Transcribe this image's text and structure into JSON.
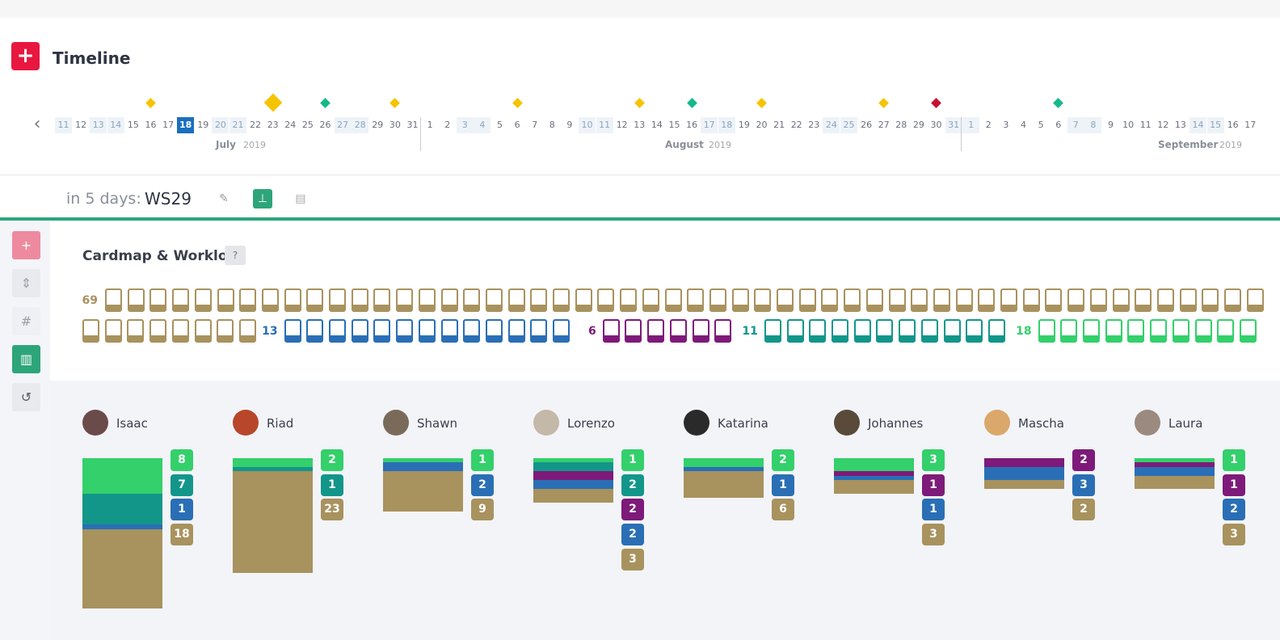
{
  "app": {
    "title": "Timeline",
    "logo_icon": "plus-icon"
  },
  "colors": {
    "brand": "#e8173f",
    "accent": "#2da57a",
    "today": "#1a6fc0"
  },
  "timeline": {
    "today": "18 July 2019",
    "months": [
      {
        "name": "July",
        "year": "2019"
      },
      {
        "name": "August",
        "year": "2019"
      },
      {
        "name": "September",
        "year": "2019"
      }
    ],
    "days": [
      {
        "d": "11",
        "w": true
      },
      {
        "d": "12",
        "w": false
      },
      {
        "d": "13",
        "w": true
      },
      {
        "d": "14",
        "w": true
      },
      {
        "d": "15",
        "w": false
      },
      {
        "d": "16",
        "w": false
      },
      {
        "d": "17",
        "w": false
      },
      {
        "d": "18",
        "w": false,
        "today": true
      },
      {
        "d": "19",
        "w": false
      },
      {
        "d": "20",
        "w": true
      },
      {
        "d": "21",
        "w": true
      },
      {
        "d": "22",
        "w": false
      },
      {
        "d": "23",
        "w": false
      },
      {
        "d": "24",
        "w": false
      },
      {
        "d": "25",
        "w": false
      },
      {
        "d": "26",
        "w": false
      },
      {
        "d": "27",
        "w": true
      },
      {
        "d": "28",
        "w": true
      },
      {
        "d": "29",
        "w": false
      },
      {
        "d": "30",
        "w": false
      },
      {
        "d": "31",
        "w": false
      },
      {
        "d": "1",
        "w": false
      },
      {
        "d": "2",
        "w": false
      },
      {
        "d": "3",
        "w": true
      },
      {
        "d": "4",
        "w": true
      },
      {
        "d": "5",
        "w": false
      },
      {
        "d": "6",
        "w": false
      },
      {
        "d": "7",
        "w": false
      },
      {
        "d": "8",
        "w": false
      },
      {
        "d": "9",
        "w": false
      },
      {
        "d": "10",
        "w": true
      },
      {
        "d": "11",
        "w": true
      },
      {
        "d": "12",
        "w": false
      },
      {
        "d": "13",
        "w": false
      },
      {
        "d": "14",
        "w": false
      },
      {
        "d": "15",
        "w": false
      },
      {
        "d": "16",
        "w": false
      },
      {
        "d": "17",
        "w": true
      },
      {
        "d": "18",
        "w": true
      },
      {
        "d": "19",
        "w": false
      },
      {
        "d": "20",
        "w": false
      },
      {
        "d": "21",
        "w": false
      },
      {
        "d": "22",
        "w": false
      },
      {
        "d": "23",
        "w": false
      },
      {
        "d": "24",
        "w": true
      },
      {
        "d": "25",
        "w": true
      },
      {
        "d": "26",
        "w": false
      },
      {
        "d": "27",
        "w": false
      },
      {
        "d": "28",
        "w": false
      },
      {
        "d": "29",
        "w": false
      },
      {
        "d": "30",
        "w": false
      },
      {
        "d": "31",
        "w": true
      },
      {
        "d": "1",
        "w": true
      },
      {
        "d": "2",
        "w": false
      },
      {
        "d": "3",
        "w": false
      },
      {
        "d": "4",
        "w": false
      },
      {
        "d": "5",
        "w": false
      },
      {
        "d": "6",
        "w": false
      },
      {
        "d": "7",
        "w": true
      },
      {
        "d": "8",
        "w": true
      },
      {
        "d": "9",
        "w": false
      },
      {
        "d": "10",
        "w": false
      },
      {
        "d": "11",
        "w": false
      },
      {
        "d": "12",
        "w": false
      },
      {
        "d": "13",
        "w": false
      },
      {
        "d": "14",
        "w": true
      },
      {
        "d": "15",
        "w": true
      },
      {
        "d": "16",
        "w": false
      },
      {
        "d": "17",
        "w": false
      }
    ],
    "events": [
      {
        "day_index": 5,
        "color": "#f5c400",
        "big": false
      },
      {
        "day_index": 12,
        "color": "#f5c400",
        "big": true
      },
      {
        "day_index": 15,
        "color": "#14b88a",
        "big": false
      },
      {
        "day_index": 19,
        "color": "#f5c400",
        "big": false
      },
      {
        "day_index": 26,
        "color": "#f5c400",
        "big": false
      },
      {
        "day_index": 33,
        "color": "#f5c400",
        "big": false
      },
      {
        "day_index": 36,
        "color": "#14b88a",
        "big": false
      },
      {
        "day_index": 40,
        "color": "#f5c400",
        "big": false
      },
      {
        "day_index": 47,
        "color": "#f5c400",
        "big": false
      },
      {
        "day_index": 50,
        "color": "#c8102e",
        "big": false
      },
      {
        "day_index": 57,
        "color": "#14b88a",
        "big": false
      }
    ]
  },
  "event": {
    "prefix": "in 5 days:",
    "name": "WS29"
  },
  "sidebar": {
    "buttons": [
      {
        "name": "add-button",
        "icon": "+",
        "bg": "#ee8aa0",
        "fg": "#ffffff"
      },
      {
        "name": "sort-button",
        "icon": "⇕",
        "bg": "#e8eaee",
        "fg": "#9aa0aa"
      },
      {
        "name": "hash-button",
        "icon": "#",
        "bg": "#eef0f3",
        "fg": "#9aa0aa"
      },
      {
        "name": "chart-button",
        "icon": "▥",
        "bg": "#2da57a",
        "fg": "#ffffff"
      },
      {
        "name": "history-button",
        "icon": "↺",
        "bg": "#e8eaee",
        "fg": "#555b66"
      }
    ]
  },
  "cardmap": {
    "title": "Cardmap & Workload",
    "help": "?",
    "groups": [
      {
        "count": "69",
        "color": "#a8925e"
      },
      {
        "count": "13",
        "color": "#2a6fb5"
      },
      {
        "count": "6",
        "color": "#7e1a7a"
      },
      {
        "count": "11",
        "color": "#13968a"
      },
      {
        "count": "18",
        "color": "#33d06b"
      }
    ]
  },
  "workload": {
    "colors": {
      "green": "#33d06b",
      "teal": "#13968a",
      "blue": "#2a6fb5",
      "purple": "#7e1a7a",
      "brown": "#a8925e"
    },
    "people": [
      {
        "name": "Isaac",
        "avatar": "#6b4a4a",
        "badges": [
          {
            "v": "8",
            "c": "green"
          },
          {
            "v": "7",
            "c": "teal"
          },
          {
            "v": "1",
            "c": "blue"
          },
          {
            "v": "18",
            "c": "brown"
          }
        ]
      },
      {
        "name": "Riad",
        "avatar": "#b8462b",
        "badges": [
          {
            "v": "2",
            "c": "green"
          },
          {
            "v": "1",
            "c": "teal"
          },
          {
            "v": "23",
            "c": "brown"
          }
        ]
      },
      {
        "name": "Shawn",
        "avatar": "#7a6a5a",
        "badges": [
          {
            "v": "1",
            "c": "green"
          },
          {
            "v": "2",
            "c": "blue"
          },
          {
            "v": "9",
            "c": "brown"
          }
        ]
      },
      {
        "name": "Lorenzo",
        "avatar": "#c4b8a8",
        "badges": [
          {
            "v": "1",
            "c": "green"
          },
          {
            "v": "2",
            "c": "teal"
          },
          {
            "v": "2",
            "c": "purple"
          },
          {
            "v": "2",
            "c": "blue"
          },
          {
            "v": "3",
            "c": "brown"
          }
        ]
      },
      {
        "name": "Katarina",
        "avatar": "#2a2a2a",
        "badges": [
          {
            "v": "2",
            "c": "green"
          },
          {
            "v": "1",
            "c": "blue"
          },
          {
            "v": "6",
            "c": "brown"
          }
        ]
      },
      {
        "name": "Johannes",
        "avatar": "#5a4a3a",
        "badges": [
          {
            "v": "3",
            "c": "green"
          },
          {
            "v": "1",
            "c": "purple"
          },
          {
            "v": "1",
            "c": "blue"
          },
          {
            "v": "3",
            "c": "brown"
          }
        ]
      },
      {
        "name": "Mascha",
        "avatar": "#d9a86a",
        "badges": [
          {
            "v": "2",
            "c": "purple"
          },
          {
            "v": "3",
            "c": "blue"
          },
          {
            "v": "2",
            "c": "brown"
          }
        ]
      },
      {
        "name": "Laura",
        "avatar": "#9a8a80",
        "badges": [
          {
            "v": "1",
            "c": "green"
          },
          {
            "v": "1",
            "c": "purple"
          },
          {
            "v": "2",
            "c": "blue"
          },
          {
            "v": "3",
            "c": "brown"
          }
        ]
      }
    ]
  }
}
